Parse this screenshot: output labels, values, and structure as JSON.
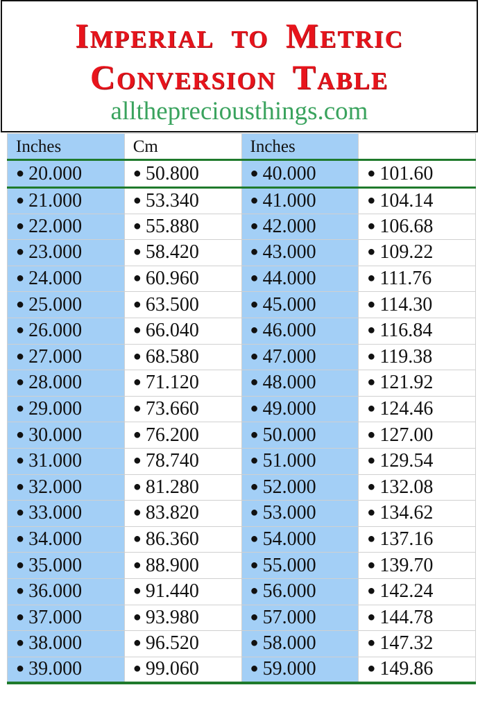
{
  "title": {
    "line1": "Imperial to Metric",
    "line2": "Conversion Table",
    "website": "allthepreciousthings.com"
  },
  "colors": {
    "title": "#e8141c",
    "website": "#3aa35e",
    "inches_column_bg": "#a3cff6",
    "rule": "#1f7a2c"
  },
  "headers": [
    "Inches",
    "Cm",
    "Inches",
    ""
  ],
  "rows": [
    [
      "20.000",
      "50.800",
      "40.000",
      "101.60"
    ],
    [
      "21.000",
      "53.340",
      "41.000",
      "104.14"
    ],
    [
      "22.000",
      "55.880",
      "42.000",
      "106.68"
    ],
    [
      "23.000",
      "58.420",
      "43.000",
      "109.22"
    ],
    [
      "24.000",
      "60.960",
      "44.000",
      "111.76"
    ],
    [
      "25.000",
      "63.500",
      "45.000",
      "114.30"
    ],
    [
      "26.000",
      "66.040",
      "46.000",
      "116.84"
    ],
    [
      "27.000",
      "68.580",
      "47.000",
      "119.38"
    ],
    [
      "28.000",
      "71.120",
      "48.000",
      "121.92"
    ],
    [
      "29.000",
      "73.660",
      "49.000",
      "124.46"
    ],
    [
      "30.000",
      "76.200",
      "50.000",
      "127.00"
    ],
    [
      "31.000",
      "78.740",
      "51.000",
      "129.54"
    ],
    [
      "32.000",
      "81.280",
      "52.000",
      "132.08"
    ],
    [
      "33.000",
      "83.820",
      "53.000",
      "134.62"
    ],
    [
      "34.000",
      "86.360",
      "54.000",
      "137.16"
    ],
    [
      "35.000",
      "88.900",
      "55.000",
      "139.70"
    ],
    [
      "36.000",
      "91.440",
      "56.000",
      "142.24"
    ],
    [
      "37.000",
      "93.980",
      "57.000",
      "144.78"
    ],
    [
      "38.000",
      "96.520",
      "58.000",
      "147.32"
    ],
    [
      "39.000",
      "99.060",
      "59.000",
      "149.86"
    ]
  ]
}
